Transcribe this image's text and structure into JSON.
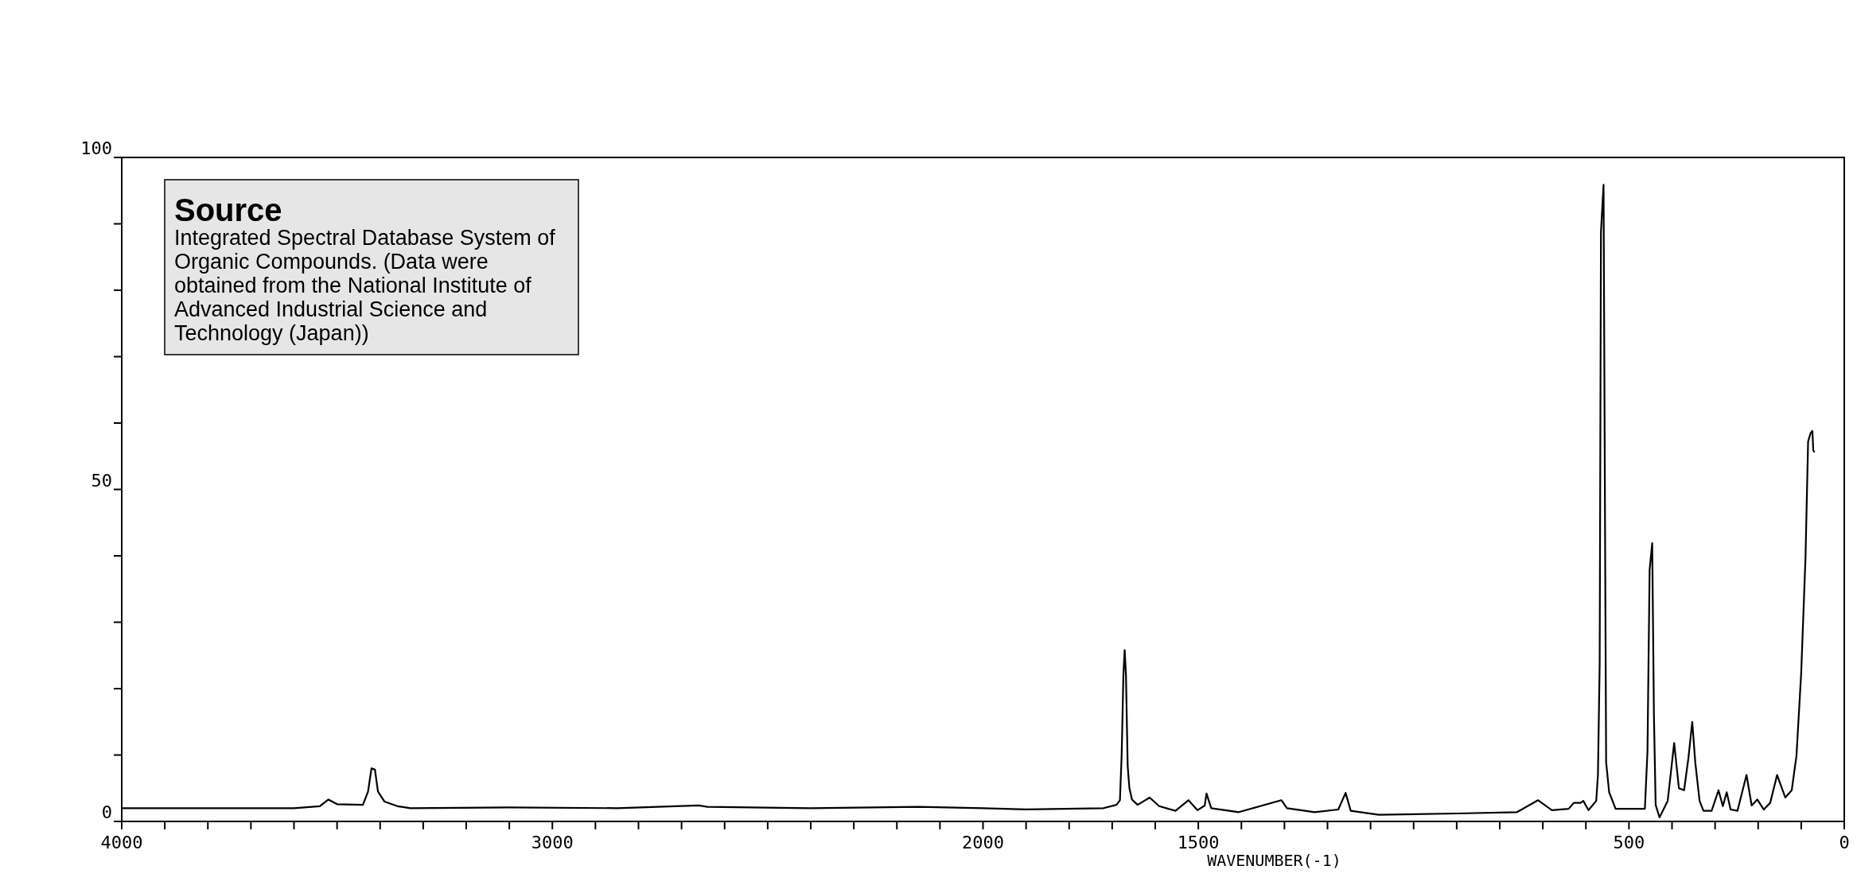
{
  "chart_data": {
    "type": "line",
    "xlabel": "WAVENUMBER(-1)",
    "annotations": [
      "Source",
      "Integrated Spectral Database System of Organic Compounds. (Data were obtained from the National Institute of Advanced Industrial Science and Technology (Japan))"
    ],
    "x": [
      4000,
      3600,
      3540,
      3520,
      3500,
      3440,
      3428,
      3420,
      3412,
      3405,
      3390,
      3360,
      3330,
      3100,
      2850,
      2660,
      2640,
      2400,
      2150,
      2000,
      1900,
      1720,
      1690,
      1682,
      1678,
      1674,
      1671,
      1668,
      1664,
      1660,
      1654,
      1641,
      1613,
      1591,
      1553,
      1523,
      1502,
      1485,
      1481,
      1470,
      1406,
      1307,
      1294,
      1230,
      1175,
      1158,
      1146,
      1081,
      900,
      760,
      711,
      679,
      640,
      628,
      612,
      606,
      594,
      576,
      572,
      568,
      565,
      559,
      555,
      553,
      546,
      531,
      463,
      457,
      452,
      446,
      442,
      438,
      429,
      410,
      395,
      384,
      372,
      362,
      353,
      346,
      336,
      327,
      308,
      292,
      282,
      273,
      264,
      248,
      227,
      215,
      202,
      187,
      172,
      156,
      137,
      122,
      111,
      100,
      90,
      84,
      78,
      74,
      72,
      69
    ],
    "series": [
      {
        "color": "#000000",
        "values": [
          2.0,
          2.0,
          2.3,
          3.3,
          2.6,
          2.5,
          4.5,
          8.0,
          7.8,
          4.5,
          3.0,
          2.3,
          2.0,
          2.1,
          2.0,
          2.4,
          2.2,
          2.0,
          2.2,
          2.0,
          1.8,
          2.0,
          2.5,
          3.2,
          10,
          22,
          25.8,
          22,
          8.3,
          5,
          3.3,
          2.5,
          3.6,
          2.3,
          1.6,
          3.2,
          1.7,
          2.4,
          4.2,
          2.0,
          1.4,
          3.2,
          2.0,
          1.4,
          1.8,
          4.3,
          1.6,
          1.0,
          1.2,
          1.4,
          3.2,
          1.7,
          1.9,
          2.8,
          2.8,
          3.1,
          1.7,
          3.1,
          7,
          23.7,
          88.8,
          95.9,
          37,
          8.9,
          4.4,
          1.9,
          1.9,
          10.5,
          37.9,
          41.9,
          16,
          2.5,
          0.6,
          3.1,
          11.8,
          5.0,
          4.7,
          9.5,
          15.0,
          8.9,
          3.1,
          1.6,
          1.6,
          4.7,
          2.3,
          4.4,
          1.8,
          1.6,
          7.0,
          2.4,
          3.3,
          1.8,
          2.8,
          7.0,
          3.6,
          4.7,
          9.9,
          22.4,
          39.8,
          57.2,
          58.5,
          58.8,
          55.9,
          55.6
        ]
      }
    ],
    "xlim": [
      4000,
      0
    ],
    "xticks": [
      4000,
      {
        "value": 3900,
        "label": null
      },
      {
        "value": 3800,
        "label": null
      },
      {
        "value": 3700,
        "label": null
      },
      {
        "value": 3600,
        "label": null
      },
      {
        "value": 3500,
        "label": null
      },
      {
        "value": 3400,
        "label": null
      },
      {
        "value": 3300,
        "label": null
      },
      {
        "value": 3200,
        "label": null
      },
      {
        "value": 3100,
        "label": null
      },
      3000,
      {
        "value": 2900,
        "label": null
      },
      {
        "value": 2800,
        "label": null
      },
      {
        "value": 2700,
        "label": null
      },
      {
        "value": 2600,
        "label": null
      },
      {
        "value": 2500,
        "label": null
      },
      {
        "value": 2400,
        "label": null
      },
      {
        "value": 2300,
        "label": null
      },
      {
        "value": 2200,
        "label": null
      },
      {
        "value": 2100,
        "label": null
      },
      2000,
      {
        "value": 1900,
        "label": null
      },
      {
        "value": 1800,
        "label": null
      },
      {
        "value": 1700,
        "label": null
      },
      {
        "value": 1600,
        "label": null
      },
      1500,
      {
        "value": 1400,
        "label": null
      },
      {
        "value": 1300,
        "label": null
      },
      {
        "value": 1200,
        "label": null
      },
      {
        "value": 1100,
        "label": null
      },
      {
        "value": 1000,
        "label": null
      },
      {
        "value": 900,
        "label": null
      },
      {
        "value": 800,
        "label": null
      },
      {
        "value": 700,
        "label": null
      },
      {
        "value": 600,
        "label": null
      },
      500,
      {
        "value": 400,
        "label": null
      },
      {
        "value": 300,
        "label": null
      },
      {
        "value": 200,
        "label": null
      },
      {
        "value": 100,
        "label": null
      },
      0
    ],
    "ylim": [
      0,
      100
    ],
    "yticks": [
      0,
      {
        "value": 10,
        "label": null
      },
      {
        "value": 20,
        "label": null
      },
      {
        "value": 30,
        "label": null
      },
      {
        "value": 40,
        "label": null
      },
      50,
      {
        "value": 60,
        "label": null
      },
      {
        "value": 70,
        "label": null
      },
      {
        "value": 80,
        "label": null
      },
      {
        "value": 90,
        "label": null
      },
      100
    ],
    "grid": false,
    "marker": "none",
    "line_style": "solid"
  }
}
